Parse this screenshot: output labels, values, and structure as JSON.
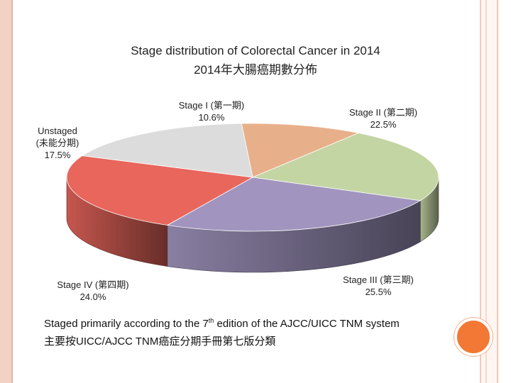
{
  "chart_data": {
    "type": "pie",
    "title": "Stage distribution of Colorectal Cancer in 2014",
    "subtitle": "2014年大腸癌期數分佈",
    "slices": [
      {
        "name": "Stage I",
        "zh": "(第一期)",
        "value": 10.6,
        "label": "10.6%",
        "color": "#e8b08a"
      },
      {
        "name": "Stage II",
        "zh": "(第二期)",
        "value": 22.5,
        "label": "22.5%",
        "color": "#c4d5a4"
      },
      {
        "name": "Stage III",
        "zh": "(第三期)",
        "value": 25.5,
        "label": "25.5%",
        "color": "#a195bf"
      },
      {
        "name": "Stage IV",
        "zh": "(第四期)",
        "value": 24.0,
        "label": "24.0%",
        "color": "#e8665c"
      },
      {
        "name": "Unstaged",
        "zh": "(未能分期)",
        "value": 17.5,
        "label": "17.5%",
        "color": "#dcdcdc"
      }
    ]
  },
  "footer": {
    "line1_pre": "Staged primarily according to the 7",
    "line1_sup": "th",
    "line1_post": " edition of the AJCC/UICC TNM system",
    "line2": "主要按UICC/AJCC TNM癌症分期手冊第七版分類"
  }
}
